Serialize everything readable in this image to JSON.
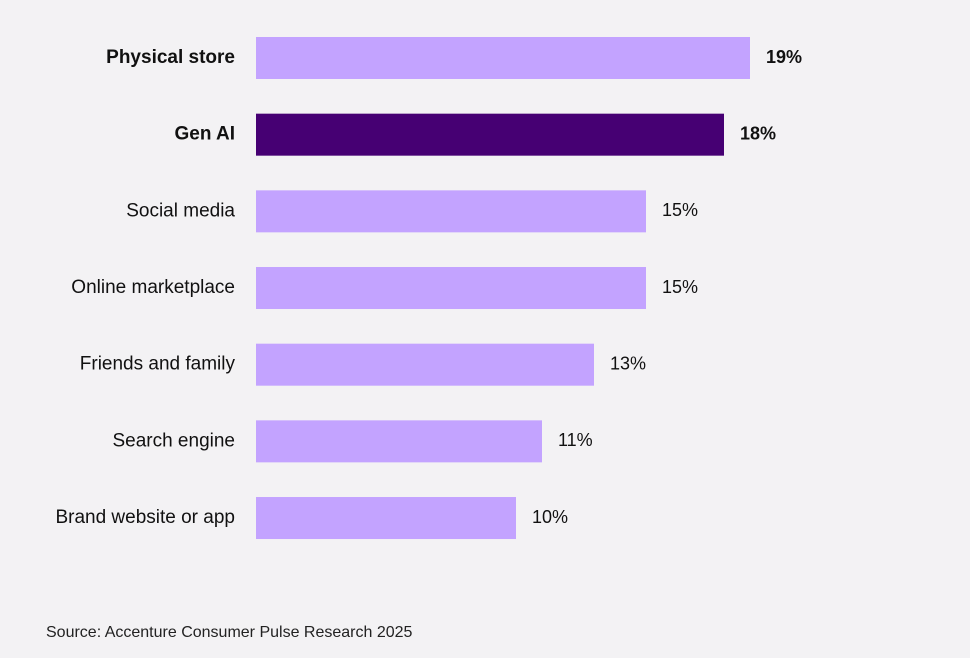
{
  "chart_data": {
    "type": "bar",
    "orientation": "horizontal",
    "categories": [
      "Physical store",
      "Gen AI",
      "Social media",
      "Online marketplace",
      "Friends and family",
      "Search engine",
      "Brand website or app"
    ],
    "values": [
      19,
      18,
      15,
      15,
      13,
      11,
      10
    ],
    "value_labels": [
      "19%",
      "18%",
      "15%",
      "15%",
      "13%",
      "11%",
      "10%"
    ],
    "bold_categories": [
      "Physical store",
      "Gen AI"
    ],
    "highlight_category": "Gen AI",
    "title": "",
    "xlabel": "",
    "ylabel": "",
    "xlim": [
      0,
      19
    ],
    "grid": false,
    "colors": {
      "bar": "#c3a3ff",
      "highlight": "#460073",
      "text": "#111111",
      "background": "#f3f2f4"
    }
  },
  "source": "Source: Accenture Consumer Pulse Research 2025"
}
